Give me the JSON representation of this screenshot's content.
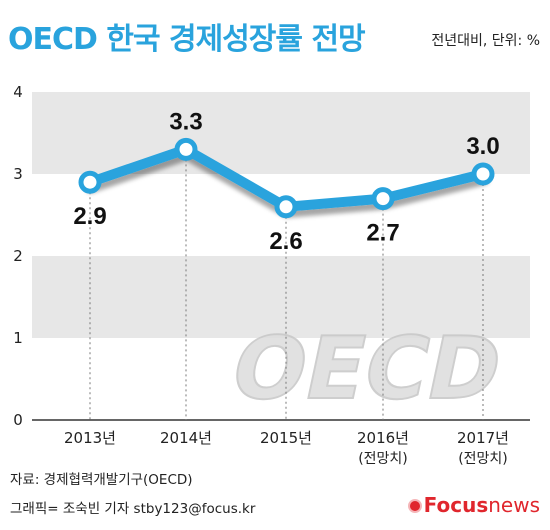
{
  "header": {
    "title": "OECD 한국 경제성장률 전망",
    "unit_note": "전년대비, 단위: %"
  },
  "footer": {
    "source": "자료: 경제협력개발기구(OECD)",
    "credit": "그래픽= 조숙빈 기자 stby123@focus.kr",
    "logo_brand": "Focus",
    "logo_suffix": "news"
  },
  "watermark": "OECD",
  "colors": {
    "title": "#29a3dd",
    "line": "#29a3dd",
    "band": "#e7e7e7",
    "logo": "#e0262d"
  },
  "chart_data": {
    "type": "line",
    "categories": [
      "2013년",
      "2014년",
      "2015년",
      "2016년",
      "2017년"
    ],
    "category_sublabels": [
      "",
      "",
      "",
      "(전망치)",
      "(전망치)"
    ],
    "series": [
      {
        "values": [
          2.9,
          3.3,
          2.6,
          2.7,
          3.0
        ]
      }
    ],
    "data_labels": [
      "2.9",
      "3.3",
      "2.6",
      "2.7",
      "3.0"
    ],
    "ylim": [
      0,
      4
    ],
    "yticks": [
      "0",
      "1",
      "2",
      "3",
      "4"
    ],
    "grid": "alternating-bands"
  }
}
